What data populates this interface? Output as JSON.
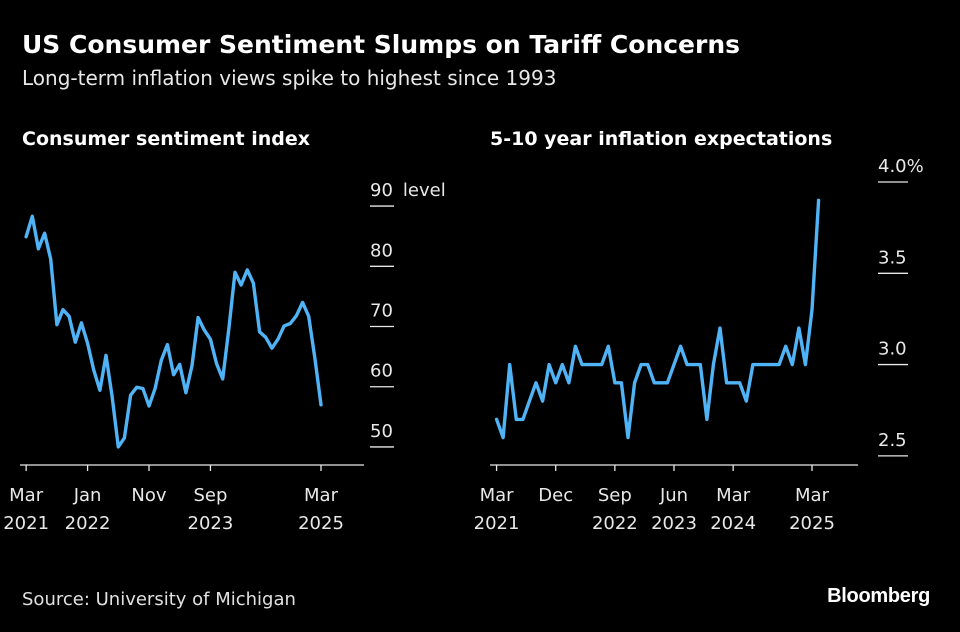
{
  "header": {
    "title": "US Consumer Sentiment Slumps on Tariff Concerns",
    "subtitle": "Long-term inflation views spike to highest since 1993"
  },
  "footer": {
    "source": "Source: University of Michigan",
    "brand": "Bloomberg"
  },
  "colors": {
    "background": "#000000",
    "line": "#4fb3f6",
    "text": "#ffffff"
  },
  "chart_data": [
    {
      "type": "line",
      "title": "Consumer sentiment index",
      "ylabel": "level",
      "ylim": [
        47,
        94
      ],
      "yticks": [
        {
          "value": 50,
          "label": "50"
        },
        {
          "value": 60,
          "label": "60"
        },
        {
          "value": 70,
          "label": "70"
        },
        {
          "value": 80,
          "label": "80"
        },
        {
          "value": 90,
          "label": "90"
        }
      ],
      "xlim": [
        -1,
        55
      ],
      "xticks": [
        {
          "index": 0,
          "line1": "Mar",
          "line2": "2021"
        },
        {
          "index": 10,
          "line1": "Jan",
          "line2": "2022"
        },
        {
          "index": 20,
          "line1": "Nov",
          "line2": ""
        },
        {
          "index": 30,
          "line1": "Sep",
          "line2": "2023"
        },
        {
          "index": 48,
          "line1": "Mar",
          "line2": "2025"
        }
      ],
      "series": [
        {
          "name": "Consumer sentiment",
          "start": "Mar 2021",
          "frequency": "monthly",
          "values": [
            84.9,
            88.3,
            82.9,
            85.5,
            81.2,
            70.3,
            72.8,
            71.7,
            67.4,
            70.6,
            67.2,
            62.8,
            59.4,
            65.2,
            58.4,
            50.0,
            51.5,
            58.6,
            59.9,
            59.7,
            56.8,
            59.7,
            64.4,
            67.0,
            62.0,
            63.7,
            59.0,
            63.5,
            71.5,
            69.4,
            67.9,
            63.8,
            61.3,
            69.7,
            79.0,
            76.9,
            79.4,
            77.2,
            69.1,
            68.2,
            66.4,
            67.9,
            70.1,
            70.5,
            71.8,
            74.0,
            71.7,
            64.7,
            57.0
          ]
        }
      ]
    },
    {
      "type": "line",
      "title": "5-10 year inflation expectations",
      "ylabel": "%",
      "ylim": [
        2.45,
        4.0
      ],
      "yticks": [
        {
          "value": 2.5,
          "label": "2.5"
        },
        {
          "value": 3.0,
          "label": "3.0"
        },
        {
          "value": 3.5,
          "label": "3.5"
        },
        {
          "value": 4.0,
          "label": "4.0%"
        }
      ],
      "xlim": [
        -1,
        55
      ],
      "xticks": [
        {
          "index": 0,
          "line1": "Mar",
          "line2": "2021"
        },
        {
          "index": 9,
          "line1": "Dec",
          "line2": ""
        },
        {
          "index": 18,
          "line1": "Sep",
          "line2": "2022"
        },
        {
          "index": 27,
          "line1": "Jun",
          "line2": "2023"
        },
        {
          "index": 36,
          "line1": "Mar",
          "line2": "2024"
        },
        {
          "index": 48,
          "line1": "Mar",
          "line2": "2025"
        }
      ],
      "series": [
        {
          "name": "5-10 year inflation expectations",
          "start": "Mar 2021",
          "frequency": "monthly",
          "values": [
            2.7,
            2.6,
            3.0,
            2.7,
            2.7,
            2.8,
            2.9,
            2.8,
            3.0,
            2.9,
            3.0,
            2.9,
            3.1,
            3.0,
            3.0,
            3.0,
            3.0,
            3.1,
            2.9,
            2.9,
            2.6,
            2.9,
            3.0,
            3.0,
            2.9,
            2.9,
            2.9,
            3.0,
            3.1,
            3.0,
            3.0,
            3.0,
            2.7,
            3.0,
            3.2,
            2.9,
            2.9,
            2.9,
            2.8,
            3.0,
            3.0,
            3.0,
            3.0,
            3.0,
            3.1,
            3.0,
            3.2,
            3.0,
            3.3,
            3.9
          ]
        }
      ]
    }
  ]
}
